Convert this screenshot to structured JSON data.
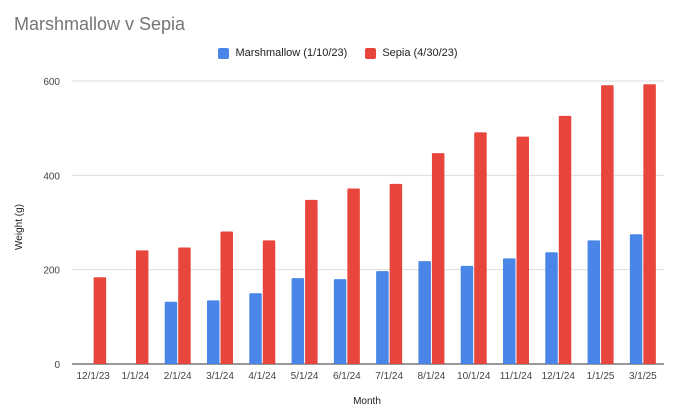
{
  "chart_data": {
    "type": "bar",
    "title": "Marshmallow v Sepia",
    "xlabel": "Month",
    "ylabel": "Weight (g)",
    "ylim": [
      0,
      600
    ],
    "yticks": [
      "0",
      "200",
      "400",
      "600"
    ],
    "grid": "horizontal",
    "legend_position": "top",
    "categories": [
      "12/1/23",
      "1/1/24",
      "2/1/24",
      "3/1/24",
      "4/1/24",
      "5/1/24",
      "6/1/24",
      "7/1/24",
      "8/1/24",
      "10/1/24",
      "11/1/24",
      "12/1/24",
      "1/1/25",
      "3/1/25"
    ],
    "series": [
      {
        "name": "Marshmallow (1/10/23)",
        "color": "#4a86e8",
        "values": [
          null,
          null,
          132,
          135,
          150,
          182,
          180,
          197,
          218,
          208,
          224,
          237,
          262,
          275
        ]
      },
      {
        "name": "Sepia (4/30/23)",
        "color": "#e8453c",
        "values": [
          184,
          241,
          247,
          281,
          262,
          348,
          372,
          382,
          447,
          491,
          482,
          526,
          591,
          593
        ]
      }
    ]
  }
}
